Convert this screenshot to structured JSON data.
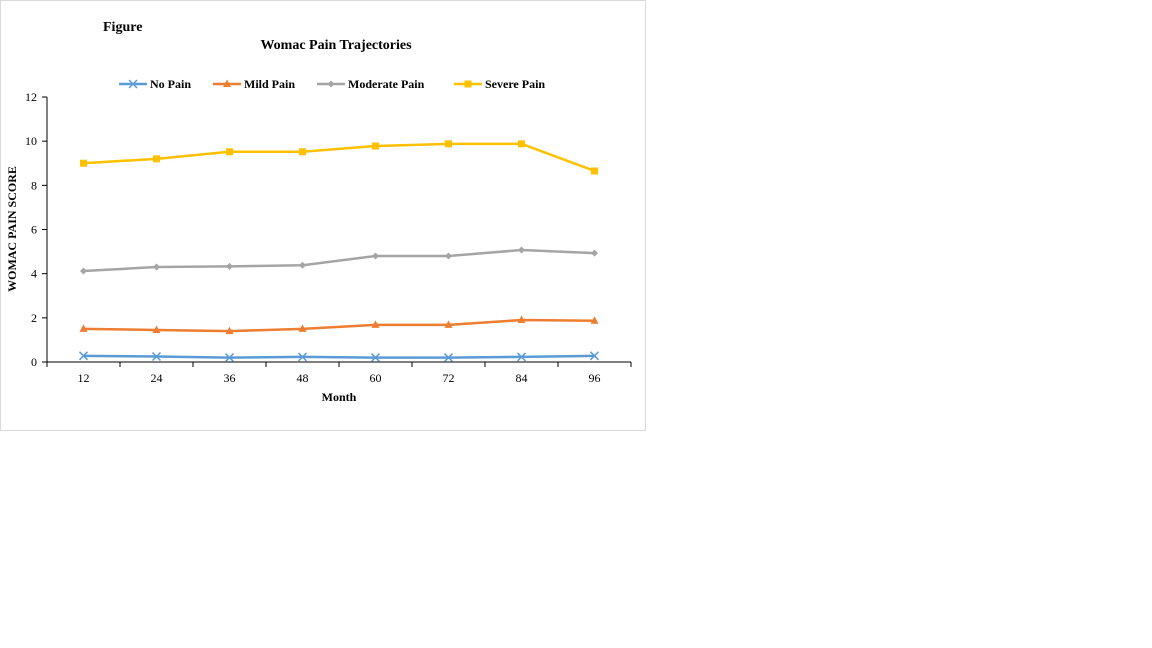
{
  "caption": "Figure",
  "chart_data": {
    "type": "line",
    "title": "Womac Pain Trajectories",
    "xlabel": "Month",
    "ylabel": "WOMAC PAIN SCORE",
    "categories": [
      "12",
      "24",
      "36",
      "48",
      "60",
      "72",
      "84",
      "96"
    ],
    "ylim": [
      0,
      12
    ],
    "yticks": [
      "0",
      "2",
      "4",
      "6",
      "8",
      "10",
      "12"
    ],
    "grid": false,
    "legend_position": "top",
    "series": [
      {
        "name": "No Pain",
        "color": "#5B9BD5",
        "marker": "x-icon",
        "values": [
          0.28,
          0.25,
          0.2,
          0.23,
          0.2,
          0.2,
          0.23,
          0.28
        ]
      },
      {
        "name": "Mild Pain",
        "color": "#ED7D31",
        "marker": "triangle-icon",
        "values": [
          1.5,
          1.45,
          1.4,
          1.5,
          1.68,
          1.68,
          1.9,
          1.87
        ]
      },
      {
        "name": "Moderate Pain",
        "color": "#A5A5A5",
        "marker": "diamond-icon",
        "values": [
          4.12,
          4.3,
          4.33,
          4.38,
          4.8,
          4.8,
          5.07,
          4.93
        ]
      },
      {
        "name": "Severe Pain",
        "color": "#FFC000",
        "marker": "square-icon",
        "values": [
          9.0,
          9.2,
          9.52,
          9.52,
          9.78,
          9.88,
          9.88,
          8.65
        ]
      }
    ]
  }
}
